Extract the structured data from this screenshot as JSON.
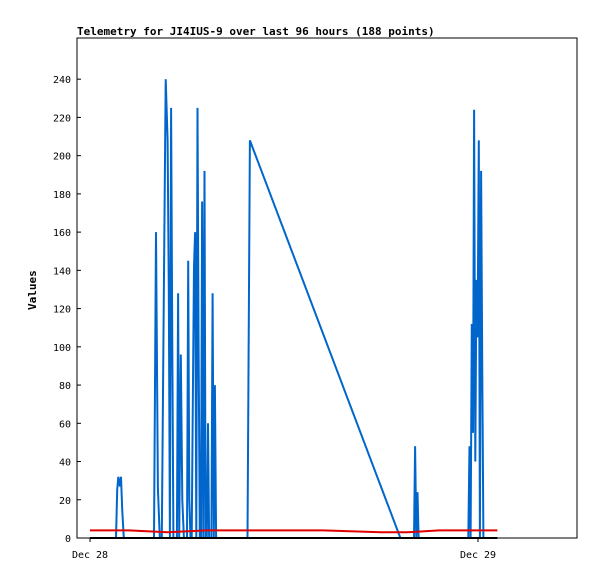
{
  "chart_data": {
    "type": "line",
    "title": "Telemetry for JI4IUS-9 over last 96 hours (188 points)",
    "ylabel": "Values",
    "ylim": [
      0,
      255
    ],
    "xlim": [
      0,
      1.3
    ],
    "yticks": [
      0,
      20,
      40,
      60,
      80,
      100,
      120,
      140,
      160,
      180,
      200,
      220,
      240
    ],
    "xticks": [
      {
        "label": "Dec 28",
        "x": 0
      },
      {
        "label": "Dec 29",
        "x": 1
      }
    ],
    "grid": false,
    "series": [
      {
        "color": "#0066cc",
        "x": [
          0.06,
          0.067,
          0.07,
          0.073,
          0.077,
          0.08,
          0.083,
          0.087,
          0.09,
          0.165,
          0.17,
          0.175,
          0.18,
          0.185,
          0.19,
          0.195,
          0.2,
          0.203,
          0.206,
          0.209,
          0.212,
          0.215,
          0.218,
          0.221,
          0.224,
          0.227,
          0.23,
          0.234,
          0.238,
          0.242,
          0.246,
          0.25,
          0.253,
          0.256,
          0.259,
          0.262,
          0.265,
          0.268,
          0.271,
          0.274,
          0.277,
          0.28,
          0.283,
          0.286,
          0.289,
          0.292,
          0.295,
          0.298,
          0.301,
          0.304,
          0.307,
          0.31,
          0.313,
          0.316,
          0.319,
          0.322,
          0.325,
          0.328,
          0.331,
          0.334,
          0.337,
          0.34,
          0.343,
          0.346,
          0.349,
          0.352,
          0.355,
          0.358,
          0.361,
          0.364,
          0.367,
          0.37,
          0.373,
          0.376,
          0.379,
          0.382,
          0.385,
          0.388,
          0.391,
          0.394,
          0.397,
          0.4,
          0.403,
          0.406,
          0.409,
          0.412,
          0.8,
          0.83,
          0.835,
          0.838,
          0.841,
          0.844,
          0.847,
          0.85,
          0.975,
          0.978,
          0.981,
          0.984,
          0.987,
          0.99,
          0.993,
          0.996,
          0.999,
          1.002,
          1.005,
          1.008,
          1.011,
          1.014,
          1.017,
          1.02,
          1.023,
          1.026,
          1.03
        ],
        "y": [
          0,
          0,
          25,
          32,
          27,
          32,
          15,
          0,
          0,
          0,
          160,
          26,
          0,
          0,
          120,
          240,
          208,
          130,
          0,
          225,
          100,
          0,
          0,
          0,
          0,
          128,
          0,
          96,
          20,
          0,
          0,
          0,
          145,
          20,
          0,
          0,
          70,
          142,
          160,
          0,
          225,
          100,
          0,
          0,
          176,
          0,
          192,
          0,
          0,
          60,
          0,
          0,
          0,
          128,
          0,
          80,
          0,
          0,
          0,
          0,
          0,
          0,
          0,
          0,
          0,
          0,
          0,
          0,
          0,
          0,
          0,
          0,
          0,
          0,
          0,
          0,
          0,
          0,
          0,
          0,
          0,
          0,
          0,
          0,
          105,
          208,
          0,
          0,
          0,
          48,
          0,
          24,
          0,
          0,
          0,
          48,
          0,
          112,
          55,
          224,
          40,
          135,
          105,
          208,
          0,
          192,
          85,
          0,
          0,
          0,
          0,
          0,
          0
        ],
        "_note": null
      },
      {
        "color": "#e00000",
        "x": [
          0,
          0.1,
          0.2,
          0.3,
          0.35,
          0.45,
          0.6,
          0.75,
          0.82,
          0.9,
          1.0,
          1.05
        ],
        "y": [
          4,
          4,
          3,
          4,
          4,
          4,
          4,
          3,
          3,
          4,
          4,
          4
        ]
      },
      {
        "color": "#000000",
        "x": [
          0,
          1.05
        ],
        "y": [
          0,
          0
        ]
      }
    ]
  }
}
